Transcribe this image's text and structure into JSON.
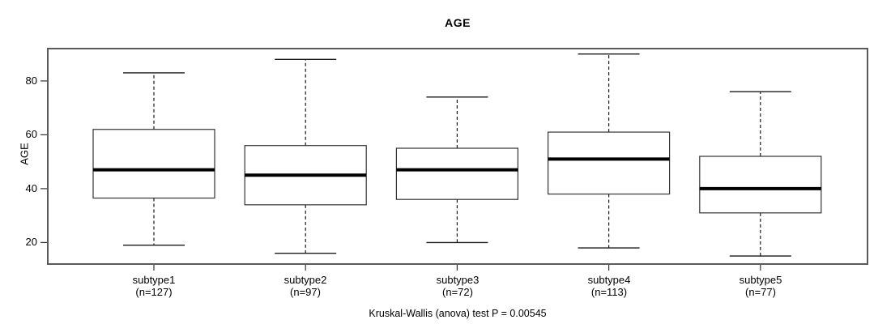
{
  "chart_data": {
    "type": "boxplot",
    "title": "AGE",
    "ylabel": "AGE",
    "xlabel": "",
    "ylim": [
      12,
      92
    ],
    "yticks": [
      20,
      40,
      60,
      80
    ],
    "grid": false,
    "legend": "none",
    "categories": [
      "subtype1",
      "subtype2",
      "subtype3",
      "subtype4",
      "subtype5"
    ],
    "category_sublabels": [
      "(n=127)",
      "(n=97)",
      "(n=72)",
      "(n=113)",
      "(n=77)"
    ],
    "series": [
      {
        "name": "subtype1",
        "n": 127,
        "whisker_low": 19,
        "q1": 36.5,
        "median": 47,
        "q3": 62,
        "whisker_high": 83
      },
      {
        "name": "subtype2",
        "n": 97,
        "whisker_low": 16,
        "q1": 34,
        "median": 45,
        "q3": 56,
        "whisker_high": 88
      },
      {
        "name": "subtype3",
        "n": 72,
        "whisker_low": 20,
        "q1": 36,
        "median": 47,
        "q3": 55,
        "whisker_high": 74
      },
      {
        "name": "subtype4",
        "n": 113,
        "whisker_low": 18,
        "q1": 38,
        "median": 51,
        "q3": 61,
        "whisker_high": 90
      },
      {
        "name": "subtype5",
        "n": 77,
        "whisker_low": 15,
        "q1": 31,
        "median": 40,
        "q3": 52,
        "whisker_high": 76
      }
    ],
    "annotation": "Kruskal-Wallis (anova) test P = 0.00545",
    "colors": {
      "box_fill": "#ffffff",
      "box_stroke": "#333333",
      "median": "#000000",
      "whisker": "#1a1a1a",
      "plot_border": "#5a5a5a",
      "tick": "#333333"
    }
  }
}
